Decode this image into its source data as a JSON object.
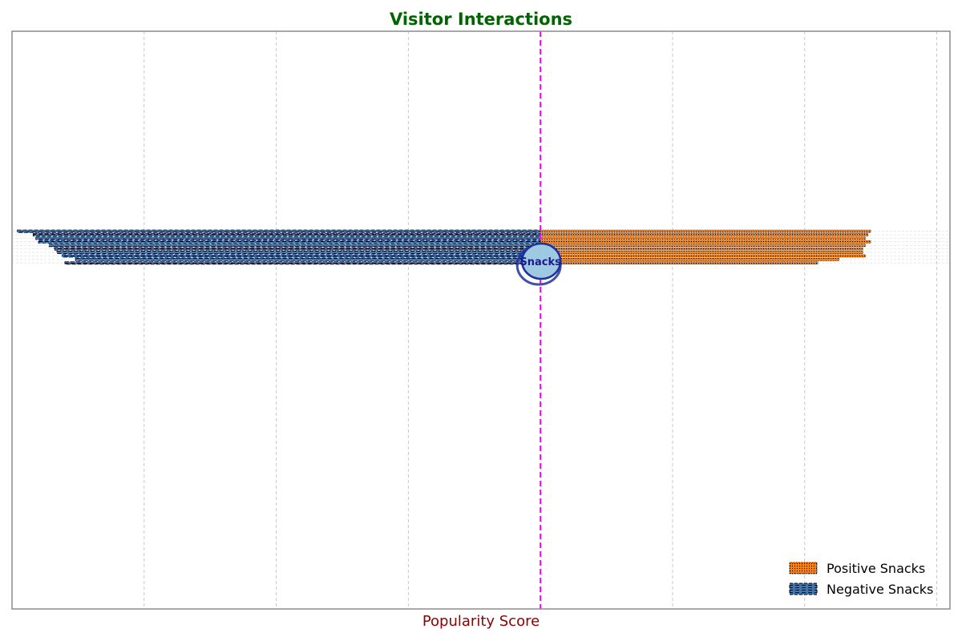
{
  "chart_data": {
    "type": "bar",
    "orientation": "horizontal-diverging",
    "title": "Visitor Interactions",
    "xlabel": "Popularity Score",
    "ylabel": "",
    "xlim": [
      -200,
      155
    ],
    "grid": true,
    "legend_position": "lower-right",
    "center_label": "Snacks",
    "series": [
      {
        "name": "Positive Snacks",
        "values": [
          125,
          124,
          123,
          125,
          123,
          122,
          122,
          123,
          113,
          105
        ]
      },
      {
        "name": "Negative Snacks",
        "values": [
          -198,
          -192,
          -191,
          -190,
          -186,
          -184,
          -183,
          -181,
          -176,
          -180
        ]
      }
    ]
  },
  "colors": {
    "title": "#006400",
    "xlabel": "#8b0000",
    "positive": "#ff7f0e",
    "negative": "#3b78b0",
    "zero_line": "#ff00ff",
    "grid": "#c8c8c8",
    "frame": "#8c8c8c",
    "center_fill": "#9ecae1",
    "center_stroke": "#1f2f9f"
  }
}
